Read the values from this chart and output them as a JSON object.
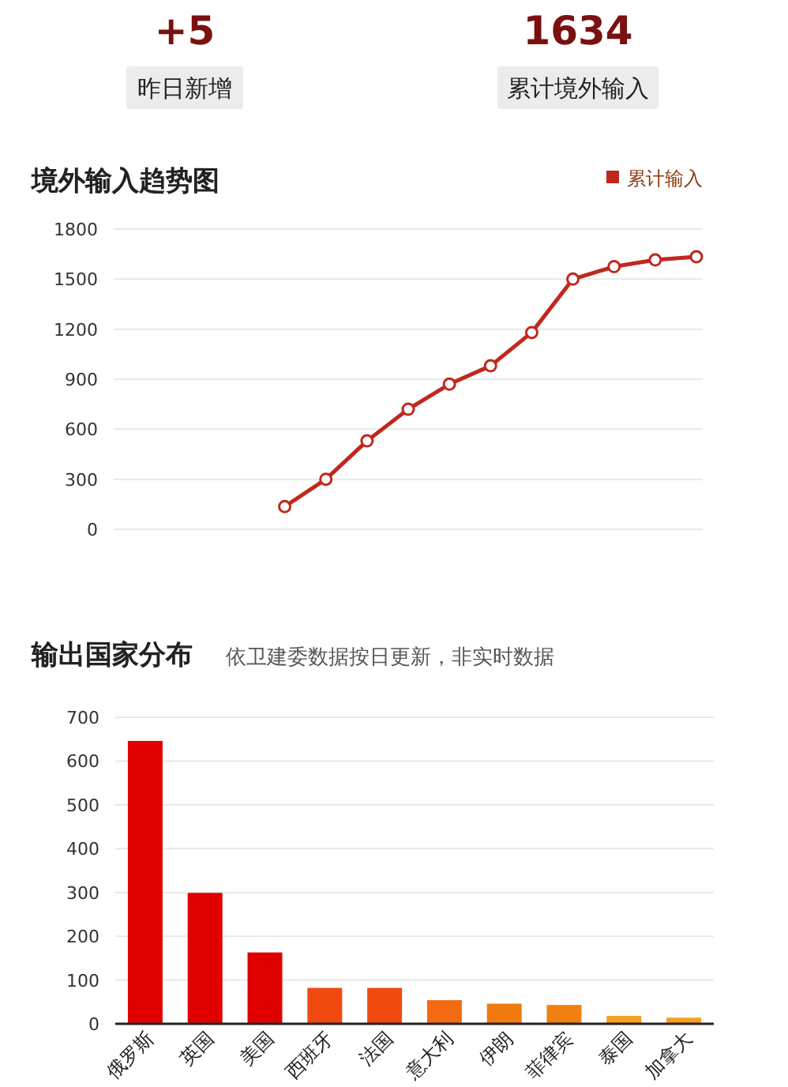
{
  "chart_data": [
    {
      "type": "other",
      "annotations": [
        "+5",
        "昨日新增",
        "1634",
        "累计境外输入"
      ]
    },
    {
      "type": "line",
      "title": "境外输入趋势图",
      "categories": [
        null,
        null,
        null,
        null,
        null,
        null,
        null,
        null,
        null,
        null,
        null,
        null,
        null,
        null,
        null
      ],
      "series": [
        {
          "name": "累计输入",
          "color": "#c0281e",
          "values": [
            null,
            null,
            null,
            null,
            136,
            300,
            530,
            720,
            870,
            980,
            1180,
            1500,
            1575,
            1615,
            1634
          ]
        }
      ],
      "ylim": [
        0,
        1800
      ],
      "yticks": [
        0,
        300,
        600,
        900,
        1200,
        1500,
        1800
      ],
      "grid": "y",
      "legend": "top right",
      "marker": "circle",
      "line_style": "solid"
    },
    {
      "type": "bar",
      "title": "输出国家分布",
      "subtitle": "依卫建委数据按日更新，非实时数据",
      "categories": [
        "俄罗斯",
        "英国",
        "美国",
        "西班牙",
        "法国",
        "意大利",
        "伊朗",
        "菲律宾",
        "泰国",
        "加拿大"
      ],
      "values": [
        646,
        299,
        163,
        82,
        82,
        54,
        46,
        43,
        18,
        14
      ],
      "colors": [
        "#e00000",
        "#e00000",
        "#e00000",
        "#f04a10",
        "#f04a10",
        "#f26b10",
        "#f07a10",
        "#f08010",
        "#f5a020",
        "#f5a020"
      ],
      "ylim": [
        0,
        700
      ],
      "yticks": [
        0,
        100,
        200,
        300,
        400,
        500,
        600,
        700
      ],
      "grid": "y"
    }
  ]
}
